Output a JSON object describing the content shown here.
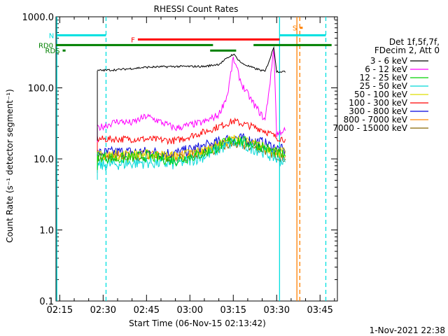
{
  "chart_data": {
    "type": "line",
    "title": "RHESSI Count Rates",
    "xlabel": "Start Time (06-Nov-15 02:13:42)",
    "ylabel": "Count Rate (s⁻¹ detector segment⁻¹)",
    "yscale": "log",
    "ylim": [
      0.1,
      1000
    ],
    "xlim": [
      "02:13:42",
      "03:51:00"
    ],
    "xticks": [
      "02:15",
      "02:30",
      "02:45",
      "03:00",
      "03:15",
      "03:30",
      "03:45"
    ],
    "yticks": [
      "0.1",
      "1.0",
      "10.0",
      "100.0",
      "1000.0"
    ],
    "grid": false,
    "legend_position": "right",
    "legend_header": [
      "Det 1f,5f,7f,",
      "FDecim 2, Att 0"
    ],
    "series": [
      {
        "name": "3 - 6 keV",
        "color": "#000000",
        "x": [
          "02:28",
          "02:35",
          "02:45",
          "02:55",
          "03:05",
          "03:10",
          "03:15",
          "03:18",
          "03:22",
          "03:26",
          "03:28",
          "03:29",
          "03:30",
          "03:32",
          "03:33"
        ],
        "y": [
          175,
          180,
          195,
          200,
          200,
          215,
          300,
          220,
          190,
          170,
          280,
          380,
          170,
          170,
          165
        ]
      },
      {
        "name": "6 - 12 keV",
        "color": "#ff00ff",
        "x": [
          "02:28",
          "02:35",
          "02:40",
          "02:45",
          "02:50",
          "02:55",
          "03:00",
          "03:05",
          "03:10",
          "03:13",
          "03:15",
          "03:18",
          "03:22",
          "03:26",
          "03:28",
          "03:29",
          "03:30",
          "03:32",
          "03:33"
        ],
        "y": [
          27,
          34,
          32,
          40,
          33,
          27,
          30,
          33,
          42,
          80,
          260,
          110,
          60,
          35,
          150,
          380,
          22,
          25,
          25
        ]
      },
      {
        "name": "12 - 25 keV",
        "color": "#00d000",
        "x": [
          "02:28",
          "02:35",
          "02:45",
          "02:55",
          "03:05",
          "03:15",
          "03:25",
          "03:30",
          "03:33"
        ],
        "y": [
          11,
          10,
          11,
          9.5,
          12,
          19,
          15,
          12,
          11
        ]
      },
      {
        "name": "25 - 50 keV",
        "color": "#00d8d8",
        "x": [
          "02:28",
          "02:35",
          "02:45",
          "02:55",
          "03:05",
          "03:15",
          "03:25",
          "03:30",
          "03:33"
        ],
        "y": [
          8,
          8.5,
          9,
          8.5,
          11,
          17,
          13,
          10,
          9
        ]
      },
      {
        "name": "50 - 100 keV",
        "color": "#dddd00",
        "x": [
          "02:28",
          "02:35",
          "02:45",
          "02:55",
          "03:05",
          "03:15",
          "03:25",
          "03:30",
          "03:33"
        ],
        "y": [
          11,
          11.5,
          11.5,
          11,
          13,
          19,
          15,
          13,
          12
        ]
      },
      {
        "name": "100 - 300 keV",
        "color": "#ff0000",
        "x": [
          "02:28",
          "02:35",
          "02:45",
          "02:55",
          "03:05",
          "03:15",
          "03:25",
          "03:30",
          "03:33"
        ],
        "y": [
          19,
          19,
          19,
          18,
          24,
          34,
          26,
          20,
          19
        ]
      },
      {
        "name": "300 - 800 keV",
        "color": "#0000dd",
        "x": [
          "02:28",
          "02:35",
          "02:45",
          "02:55",
          "03:05",
          "03:15",
          "03:25",
          "03:30",
          "03:33"
        ],
        "y": [
          12,
          12.5,
          12.5,
          12,
          15,
          20,
          17,
          14,
          13
        ]
      },
      {
        "name": "800 - 7000 keV",
        "color": "#ff8800",
        "x": [
          "02:28",
          "02:35",
          "02:45",
          "02:55",
          "03:05",
          "03:15",
          "03:25",
          "03:30",
          "03:33"
        ],
        "y": [
          11,
          11.5,
          11.5,
          11,
          13.5,
          18,
          15,
          12,
          11
        ]
      },
      {
        "name": "7000 - 15000 keV",
        "color": "#886600",
        "x": [
          "02:28",
          "02:35",
          "02:45",
          "02:55",
          "03:05",
          "03:15",
          "03:25",
          "03:30",
          "03:33"
        ],
        "y": [
          10,
          10.5,
          10.5,
          10,
          12,
          16,
          13.5,
          11,
          10
        ]
      }
    ],
    "markers": [
      {
        "label": "N",
        "color": "#00e0e0",
        "y": 550,
        "segments": [
          [
            "02:14",
            "02:31"
          ],
          [
            "03:31",
            "03:47"
          ]
        ]
      },
      {
        "label": "F",
        "color": "#ff0000",
        "y": 480,
        "segments": [
          [
            "02:42",
            "03:31"
          ]
        ]
      },
      {
        "label": "RD0",
        "color": "#008000",
        "y": 400,
        "segments": [
          [
            "02:13:42",
            "03:08"
          ],
          [
            "03:22",
            "03:49"
          ]
        ]
      },
      {
        "label": "RDS",
        "color": "#008000",
        "y": 335,
        "segments": [
          [
            "02:16",
            "02:17"
          ],
          [
            "03:07",
            "03:16"
          ]
        ]
      },
      {
        "label": "S",
        "color": "#ff8000",
        "y": 700,
        "segments": [
          [
            "03:38",
            "03:39"
          ]
        ]
      }
    ],
    "vertical_lines": [
      {
        "at": "02:14",
        "color": "#00e0e0",
        "style": "solid"
      },
      {
        "at": "02:31",
        "color": "#00e0e0",
        "style": "dashed"
      },
      {
        "at": "03:31",
        "color": "#00e0e0",
        "style": "solid"
      },
      {
        "at": "03:47",
        "color": "#00e0e0",
        "style": "dashed"
      },
      {
        "at": "03:37",
        "color": "#ff8000",
        "style": "solid"
      },
      {
        "at": "03:38",
        "color": "#ff8000",
        "style": "dashed"
      }
    ],
    "footer_date": "1-Nov-2021 22:38"
  }
}
